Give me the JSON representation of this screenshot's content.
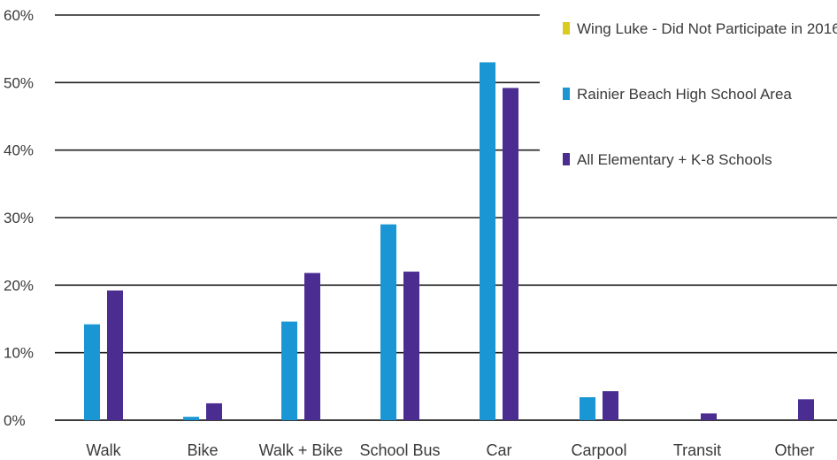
{
  "chart_data": {
    "type": "bar",
    "categories": [
      "Walk",
      "Bike",
      "Walk + Bike",
      "School Bus",
      "Car",
      "Carpool",
      "Transit",
      "Other"
    ],
    "series": [
      {
        "name": "Wing Luke - Did Not Participate  in 2016",
        "color": "#d9cc1f",
        "values": [
          0,
          0,
          0,
          0,
          0,
          0,
          0,
          0
        ]
      },
      {
        "name": "Rainier  Beach High School Area",
        "color": "#1a96d4",
        "values": [
          14.2,
          0.5,
          14.6,
          29.0,
          53.0,
          3.4,
          0,
          0
        ]
      },
      {
        "name": "All Elementary + K-8 Schools",
        "color": "#4b2c91",
        "values": [
          19.2,
          2.5,
          21.8,
          22.0,
          49.2,
          4.3,
          1.0,
          3.1
        ]
      }
    ],
    "yticks": [
      "0%",
      "10%",
      "20%",
      "30%",
      "40%",
      "50%",
      "60%"
    ],
    "ylim": [
      0,
      60
    ],
    "grid": true,
    "legend_position": "top-right"
  }
}
